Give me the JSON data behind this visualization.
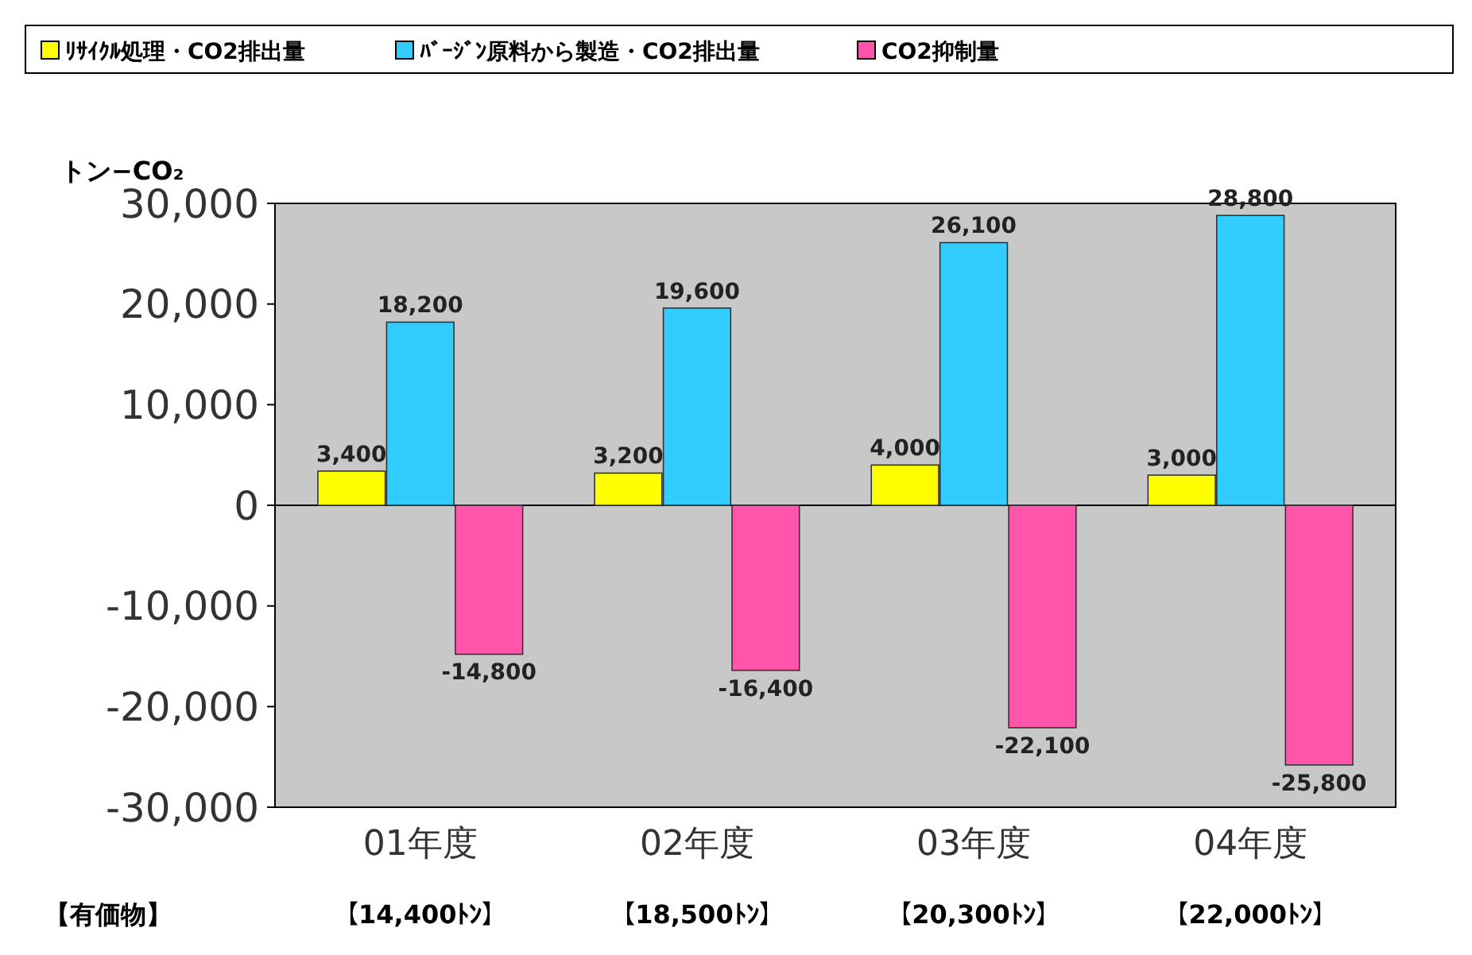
{
  "chart_data": {
    "type": "bar",
    "ylabel": "トン−CO₂",
    "categories": [
      "01年度",
      "02年度",
      "03年度",
      "04年度"
    ],
    "series": [
      {
        "name": "ﾘｻｲｸﾙ処理・CO2排出量",
        "color": "#ffff00",
        "values": [
          3400,
          3200,
          4000,
          3000
        ],
        "value_labels": [
          "3,400",
          "3,200",
          "4,000",
          "3,000"
        ]
      },
      {
        "name": "ﾊﾞｰｼﾞﾝ原料から製造・CO2排出量",
        "color": "#33ccff",
        "values": [
          18200,
          19600,
          26100,
          28800
        ],
        "value_labels": [
          "18,200",
          "19,600",
          "26,100",
          "28,800"
        ]
      },
      {
        "name": "CO2抑制量",
        "color": "#ff55aa",
        "values": [
          -14800,
          -16400,
          -22100,
          -25800
        ],
        "value_labels": [
          "-14,800",
          "-16,400",
          "-22,100",
          "-25,800"
        ]
      }
    ],
    "ylim": [
      -30000,
      30000
    ],
    "yticks": [
      {
        "value": -30000,
        "label": "-30,000"
      },
      {
        "value": -20000,
        "label": "-20,000"
      },
      {
        "value": -10000,
        "label": "-10,000"
      },
      0,
      {
        "value": 10000,
        "label": "10,000"
      },
      {
        "value": 20000,
        "label": "20,000"
      },
      {
        "value": 30000,
        "label": "30,000"
      }
    ],
    "legend": "top",
    "annotations": [
      "【有価物】",
      "【14,400ﾄﾝ】",
      "【18,500ﾄﾝ】",
      "【20,300ﾄﾝ】",
      "【22,000ﾄﾝ】"
    ]
  }
}
